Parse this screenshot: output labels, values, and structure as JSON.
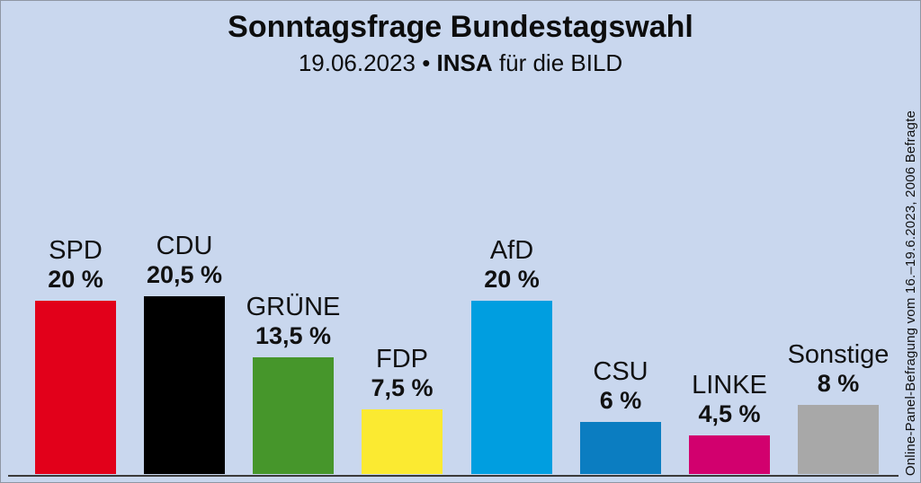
{
  "title": "Sonntagsfrage Bundestagswahl",
  "subtitle": {
    "date": "19.06.2023",
    "separator": "•",
    "institute": "INSA",
    "rest": "für die BILD"
  },
  "side_note": "Online-Panel-Befragung vom 16.–19.6.2023, 2006 Befragte",
  "colors": {
    "background": "#c9d7ee",
    "baseline": "#3a3a3a",
    "text": "#111111"
  },
  "chart_data": {
    "type": "bar",
    "title": "Sonntagsfrage Bundestagswahl",
    "subtitle": "19.06.2023 • INSA für die BILD",
    "categories": [
      "SPD",
      "CDU",
      "GRÜNE",
      "FDP",
      "AfD",
      "CSU",
      "LINKE",
      "Sonstige"
    ],
    "ids": [
      "spd",
      "cdu",
      "gruene",
      "fdp",
      "afd",
      "csu",
      "linke",
      "sonstige"
    ],
    "values": [
      20,
      20.5,
      13.5,
      7.5,
      20,
      6,
      4.5,
      8
    ],
    "value_labels": [
      "20 %",
      "20,5 %",
      "13,5 %",
      "7,5 %",
      "20 %",
      "6 %",
      "4,5 %",
      "8 %"
    ],
    "bar_colors": [
      "#e2001a",
      "#000000",
      "#46962b",
      "#fbea31",
      "#009ee0",
      "#0b7dc1",
      "#d2006e",
      "#a8a8a8"
    ],
    "xlabel": "",
    "ylabel": "",
    "unit": "%",
    "ylim": [
      0,
      22
    ],
    "grid": false,
    "legend": "none",
    "annotation": "Online-Panel-Befragung vom 16.–19.6.2023, 2006 Befragte"
  }
}
